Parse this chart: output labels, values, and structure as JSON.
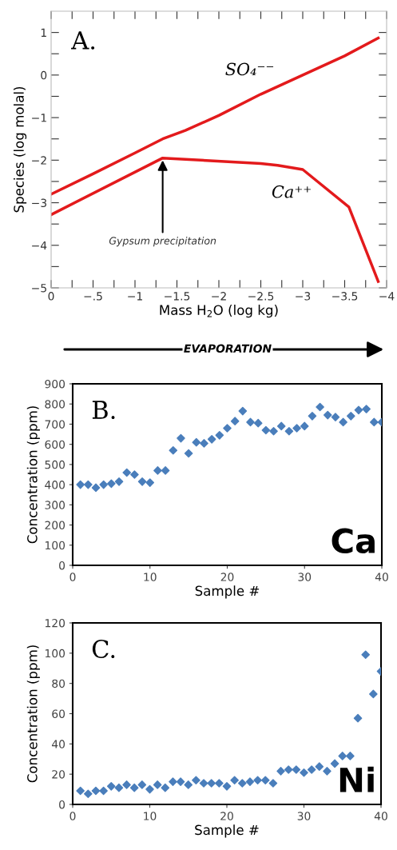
{
  "chart_data": [
    {
      "type": "line",
      "xlabel": "Mass H$_{2}$O (log kg)",
      "ylabel": "Species (log molal)",
      "xlim": [
        0,
        -4
      ],
      "ylim": [
        -5,
        1.5
      ],
      "xticks": [
        0,
        {
          "value": -0.25,
          "label": null
        },
        {
          "value": -0.5,
          "label": "−.5"
        },
        {
          "value": -0.75,
          "label": null
        },
        {
          "value": -1,
          "label": "−1"
        },
        {
          "value": -1.25,
          "label": null
        },
        {
          "value": -1.5,
          "label": "−1.5"
        },
        {
          "value": -1.75,
          "label": null
        },
        {
          "value": -2,
          "label": "−2"
        },
        {
          "value": -2.25,
          "label": null
        },
        {
          "value": -2.5,
          "label": "−2.5"
        },
        {
          "value": -2.75,
          "label": null
        },
        {
          "value": -3,
          "label": "−3"
        },
        {
          "value": -3.25,
          "label": null
        },
        {
          "value": -3.5,
          "label": "−3.5"
        },
        {
          "value": -3.75,
          "label": null
        },
        {
          "value": -4,
          "label": "−4"
        }
      ],
      "yticks": [
        {
          "value": -5,
          "label": "−5"
        },
        {
          "value": -4.5,
          "label": null
        },
        {
          "value": -4,
          "label": "−4"
        },
        {
          "value": -3.5,
          "label": null
        },
        {
          "value": -3,
          "label": "−3"
        },
        {
          "value": -2.5,
          "label": null
        },
        {
          "value": -2,
          "label": "−2"
        },
        {
          "value": -1.5,
          "label": null
        },
        {
          "value": -1,
          "label": "−1"
        },
        {
          "value": -0.5,
          "label": null
        },
        0,
        {
          "value": 0.5,
          "label": null
        },
        1
      ],
      "x": [
        0,
        -0.5,
        -1,
        -1.33,
        -1.6,
        -2,
        -2.5,
        -3,
        -3.5,
        -3.9
      ],
      "series": [
        {
          "name": "SO₄⁻⁻",
          "color": "#e31a1c",
          "values": [
            -2.8,
            -2.32,
            -1.83,
            -1.5,
            -1.3,
            -0.95,
            -0.45,
            0.0,
            0.45,
            0.87
          ]
        },
        {
          "name": "Ca⁺⁺",
          "color": "#e31a1c",
          "x": [
            0,
            -1.33,
            -2.5,
            -2.7,
            -3.0,
            -3.55,
            -3.9
          ],
          "values": [
            -3.28,
            -1.95,
            -2.08,
            -2.12,
            -2.22,
            -3.1,
            -4.85
          ]
        }
      ],
      "annotations": [
        "A.",
        {
          "text": "Gypsum precipitation",
          "x": -1.33,
          "y": -1.95
        },
        "EVAPORATION"
      ],
      "marker": "none",
      "line_style": "solid",
      "grid": false,
      "legend": false
    },
    {
      "type": "scatter",
      "xlabel": "Sample #",
      "ylabel": "Concentration (ppm)",
      "xlim": [
        0,
        40
      ],
      "ylim": [
        0,
        900
      ],
      "xticks": [
        0,
        10,
        20,
        30,
        40
      ],
      "yticks": [
        0,
        100,
        200,
        300,
        400,
        500,
        600,
        700,
        800,
        900
      ],
      "x": [
        1,
        2,
        3,
        4,
        5,
        6,
        7,
        8,
        9,
        10,
        11,
        12,
        13,
        14,
        15,
        16,
        17,
        18,
        19,
        20,
        21,
        22,
        23,
        24,
        25,
        26,
        27,
        28,
        29,
        30,
        31,
        32,
        33,
        34,
        35,
        36,
        37,
        38,
        39,
        40
      ],
      "series": [
        {
          "color": "#4a7ebb",
          "values": [
            400,
            400,
            385,
            400,
            405,
            415,
            460,
            450,
            415,
            410,
            470,
            470,
            570,
            630,
            555,
            610,
            605,
            625,
            645,
            680,
            715,
            765,
            710,
            705,
            670,
            665,
            690,
            665,
            680,
            690,
            740,
            785,
            745,
            735,
            710,
            740,
            770,
            775,
            710,
            710
          ]
        }
      ],
      "annotations": [
        "B.",
        "Ca"
      ],
      "marker": "diamond",
      "grid": false,
      "legend": false
    },
    {
      "type": "scatter",
      "xlabel": "Sample #",
      "ylabel": "Concentration (ppm)",
      "xlim": [
        0,
        40
      ],
      "ylim": [
        0,
        120
      ],
      "xticks": [
        0,
        10,
        20,
        30,
        40
      ],
      "yticks": [
        0,
        20,
        40,
        60,
        80,
        100,
        120
      ],
      "x": [
        1,
        2,
        3,
        4,
        5,
        6,
        7,
        8,
        9,
        10,
        11,
        12,
        13,
        14,
        15,
        16,
        17,
        18,
        19,
        20,
        21,
        22,
        23,
        24,
        25,
        26,
        27,
        28,
        29,
        30,
        31,
        32,
        33,
        34,
        35,
        36,
        37,
        38,
        39,
        40
      ],
      "series": [
        {
          "color": "#4a7ebb",
          "values": [
            9,
            7,
            9,
            9,
            12,
            11,
            13,
            11,
            13,
            10,
            13,
            11,
            15,
            15,
            13,
            16,
            14,
            14,
            14,
            12,
            16,
            14,
            15,
            16,
            16,
            14,
            22,
            23,
            23,
            21,
            23,
            25,
            22,
            27,
            32,
            32,
            57,
            99,
            73,
            88
          ]
        }
      ],
      "annotations": [
        "C.",
        "Ni"
      ],
      "marker": "diamond",
      "grid": false,
      "legend": false
    }
  ]
}
